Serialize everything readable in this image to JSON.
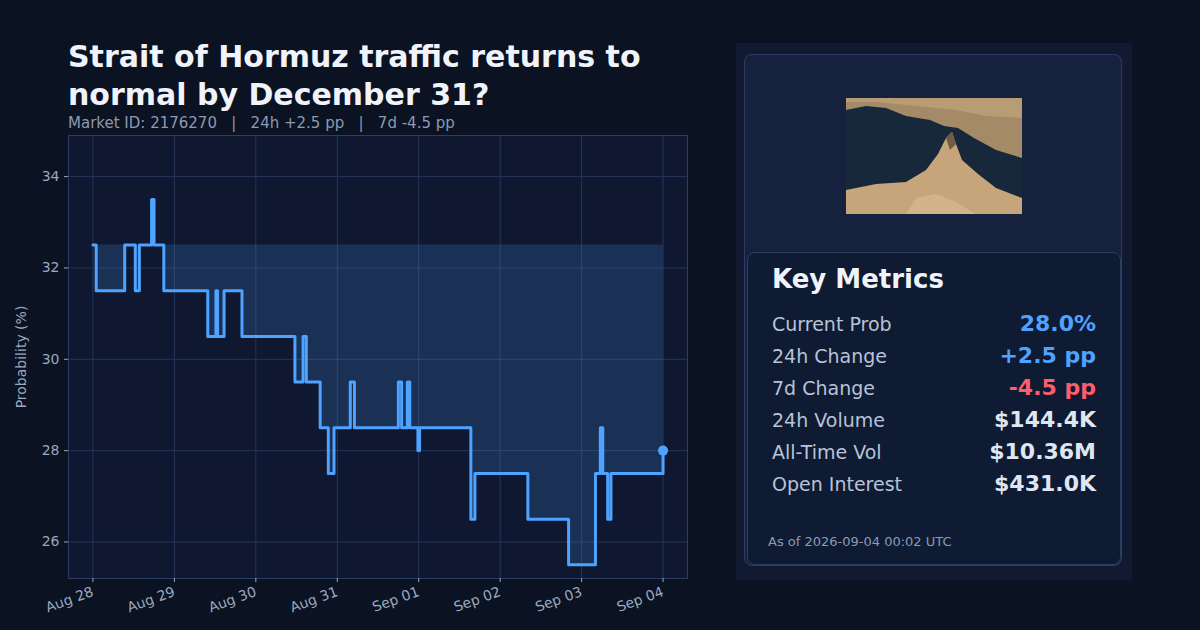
{
  "chart_data": {
    "type": "line",
    "title": "Strait of Hormuz traffic returns to normal by December 31?",
    "subtitle": "Market ID: 2176270   |   24h +2.5 pp   |   7d -4.5 pp",
    "y_label": "Probability (%)",
    "x": [
      0,
      0.04,
      0.39,
      0.52,
      0.57,
      0.72,
      0.75,
      0.87,
      1.41,
      1.51,
      1.53,
      1.61,
      1.83,
      2.48,
      2.58,
      2.62,
      2.79,
      2.89,
      2.96,
      3.16,
      3.21,
      3.75,
      3.79,
      3.86,
      3.89,
      3.99,
      4.01,
      4.64,
      4.69,
      5.34,
      5.84,
      6.17,
      6.23,
      6.26,
      6.32,
      6.36,
      7.0
    ],
    "values": [
      32.5,
      31.5,
      32.5,
      31.5,
      32.5,
      33.5,
      32.5,
      31.5,
      30.5,
      31.5,
      30.5,
      31.5,
      30.5,
      29.5,
      30.5,
      29.5,
      28.5,
      27.5,
      28.5,
      29.5,
      28.5,
      29.5,
      28.5,
      29.5,
      28.5,
      28.0,
      28.5,
      26.5,
      27.5,
      26.5,
      25.5,
      27.5,
      28.5,
      27.5,
      26.5,
      27.5,
      28.0
    ],
    "color": "#4da3ff",
    "line_style": "step",
    "xlim": [
      -0.3,
      7.3
    ],
    "xticks": [
      {
        "value": 0,
        "label": "Aug 28"
      },
      {
        "value": 1,
        "label": "Aug 29"
      },
      {
        "value": 2,
        "label": "Aug 30"
      },
      {
        "value": 3,
        "label": "Aug 31"
      },
      {
        "value": 4,
        "label": "Sep 01"
      },
      {
        "value": 5,
        "label": "Sep 02"
      },
      {
        "value": 6,
        "label": "Sep 03"
      },
      {
        "value": 7,
        "label": "Sep 04"
      }
    ],
    "ylim": [
      25.2,
      34.9
    ],
    "yticks": [
      26,
      28,
      30,
      32,
      34
    ],
    "grid": true
  },
  "panel": {
    "title": "Key Metrics",
    "metrics": [
      {
        "label": "Current Prob",
        "value": "28.0%",
        "color": "#4da3ff"
      },
      {
        "label": "24h Change",
        "value": "+2.5 pp",
        "color": "#4da3ff"
      },
      {
        "label": "7d Change",
        "value": "-4.5 pp",
        "color": "#ff5c6c"
      },
      {
        "label": "24h Volume",
        "value": "$144.4K",
        "color": "#dfe6f2"
      },
      {
        "label": "All-Time Vol",
        "value": "$10.36M",
        "color": "#dfe6f2"
      },
      {
        "label": "Open Interest",
        "value": "$431.0K",
        "color": "#dfe6f2"
      }
    ],
    "as_of": "As of 2026-09-04 00:02 UTC"
  }
}
